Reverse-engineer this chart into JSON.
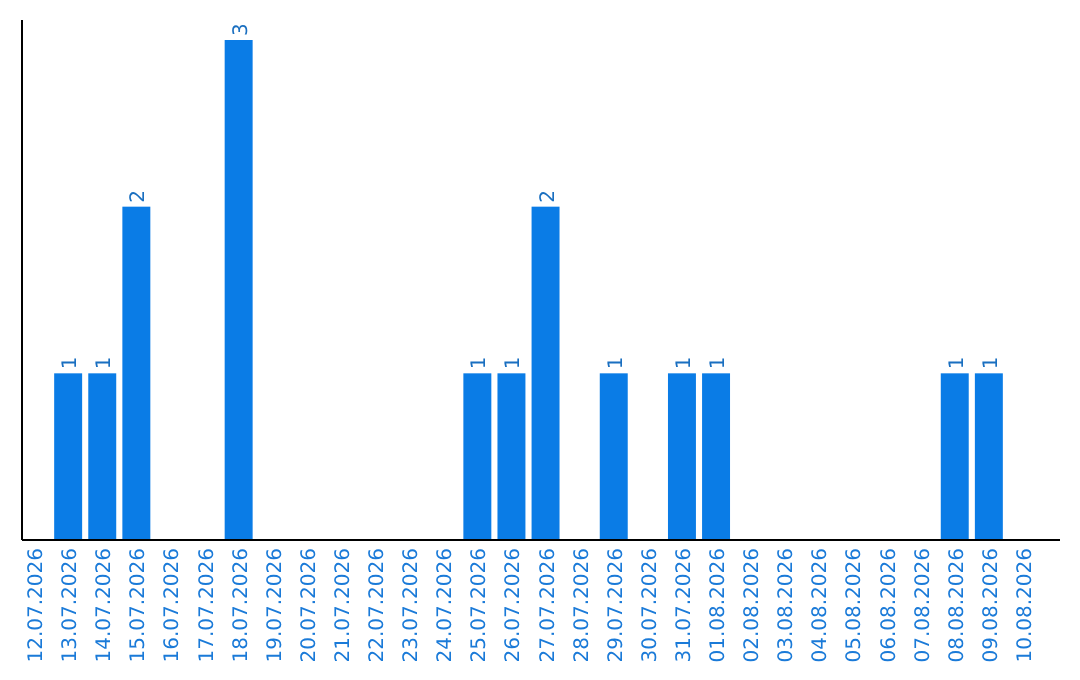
{
  "chart_data": {
    "type": "bar",
    "categories": [
      "12.07.2026",
      "13.07.2026",
      "14.07.2026",
      "15.07.2026",
      "16.07.2026",
      "17.07.2026",
      "18.07.2026",
      "19.07.2026",
      "20.07.2026",
      "21.07.2026",
      "22.07.2026",
      "23.07.2026",
      "24.07.2026",
      "25.07.2026",
      "26.07.2026",
      "27.07.2026",
      "28.07.2026",
      "29.07.2026",
      "30.07.2026",
      "31.07.2026",
      "01.08.2026",
      "02.08.2026",
      "03.08.2026",
      "04.08.2026",
      "05.08.2026",
      "06.08.2026",
      "07.08.2026",
      "08.08.2026",
      "09.08.2026",
      "10.08.2026"
    ],
    "values": [
      0,
      1,
      1,
      2,
      0,
      0,
      3,
      0,
      0,
      0,
      0,
      0,
      0,
      1,
      1,
      2,
      0,
      1,
      0,
      1,
      1,
      0,
      0,
      0,
      0,
      0,
      0,
      1,
      1,
      0
    ],
    "value_labels": [
      null,
      "1",
      "1",
      "2",
      null,
      null,
      "3",
      null,
      null,
      null,
      null,
      null,
      null,
      "1",
      "1",
      "2",
      null,
      "1",
      null,
      "1",
      "1",
      null,
      null,
      null,
      null,
      null,
      null,
      "1",
      "1",
      null
    ],
    "color": "#0a7ce6",
    "tick_labels": "x"
  }
}
